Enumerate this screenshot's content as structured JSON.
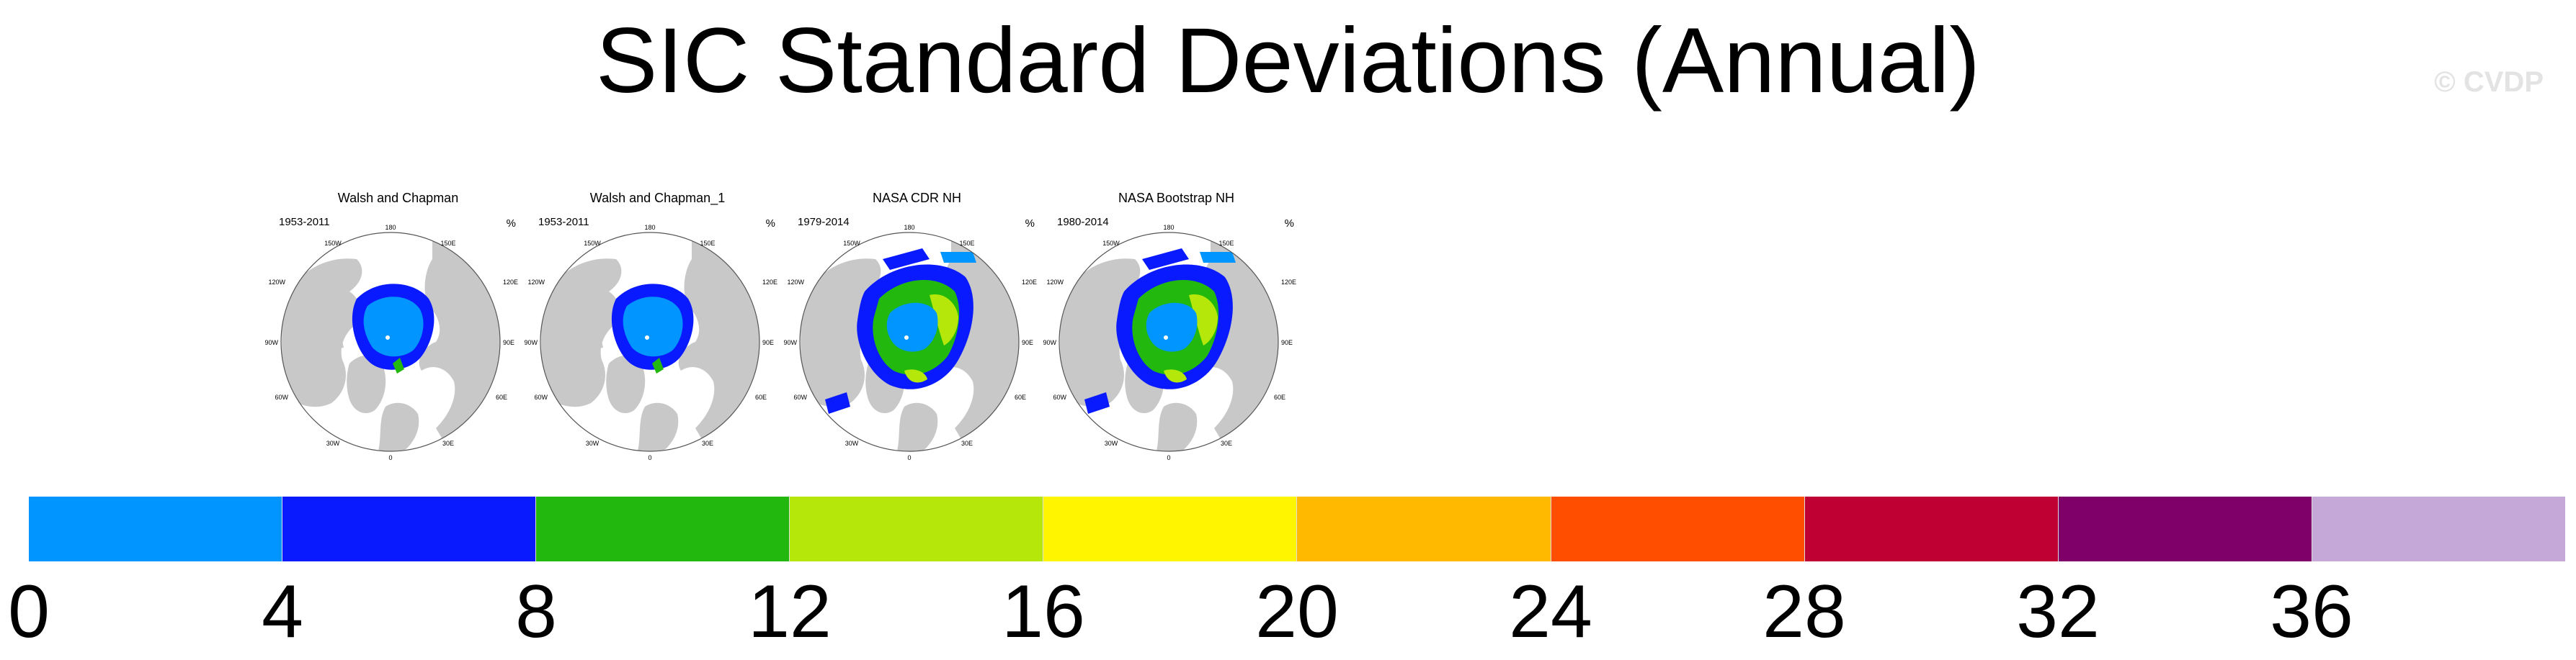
{
  "title": "SIC Standard Deviations (Annual)",
  "watermark": "© CVDP",
  "panels": [
    {
      "title": "Walsh and Chapman",
      "period": "1953-2011",
      "unit": "%",
      "variant": "low"
    },
    {
      "title": "Walsh and Chapman_1",
      "period": "1953-2011",
      "unit": "%",
      "variant": "low"
    },
    {
      "title": "NASA CDR NH",
      "period": "1979-2014",
      "unit": "%",
      "variant": "high"
    },
    {
      "title": "NASA Bootstrap NH",
      "period": "1980-2014",
      "unit": "%",
      "variant": "high"
    }
  ],
  "graticule_labels": {
    "top": "180",
    "left_top": "150W",
    "right_top": "150E",
    "l1": "120W",
    "r1": "120E",
    "l2": "90W",
    "r2": "90E",
    "l3": "60W",
    "r3": "60E",
    "l4": "30W",
    "r4": "30E",
    "bottom": "0"
  },
  "colorbar": {
    "colors": [
      "#0095ff",
      "#0a1aff",
      "#23b80e",
      "#b5e80a",
      "#fff500",
      "#ffba00",
      "#ff4e00",
      "#bf0032",
      "#80006a",
      "#c6a8d8"
    ],
    "labels": [
      "0",
      "4",
      "8",
      "12",
      "16",
      "20",
      "24",
      "28",
      "32",
      "36"
    ]
  },
  "land_color": "#c8c8c8"
}
